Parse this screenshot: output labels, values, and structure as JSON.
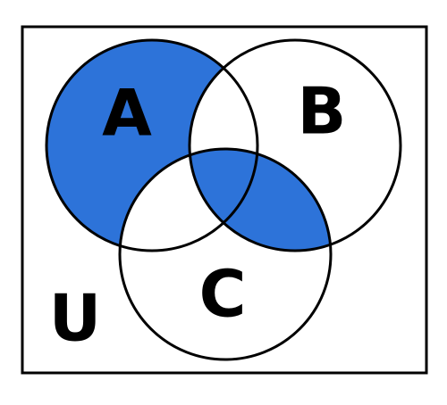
{
  "universe": {
    "label": "U"
  },
  "sets": [
    {
      "label": "A"
    },
    {
      "label": "B"
    },
    {
      "label": "C"
    }
  ]
}
